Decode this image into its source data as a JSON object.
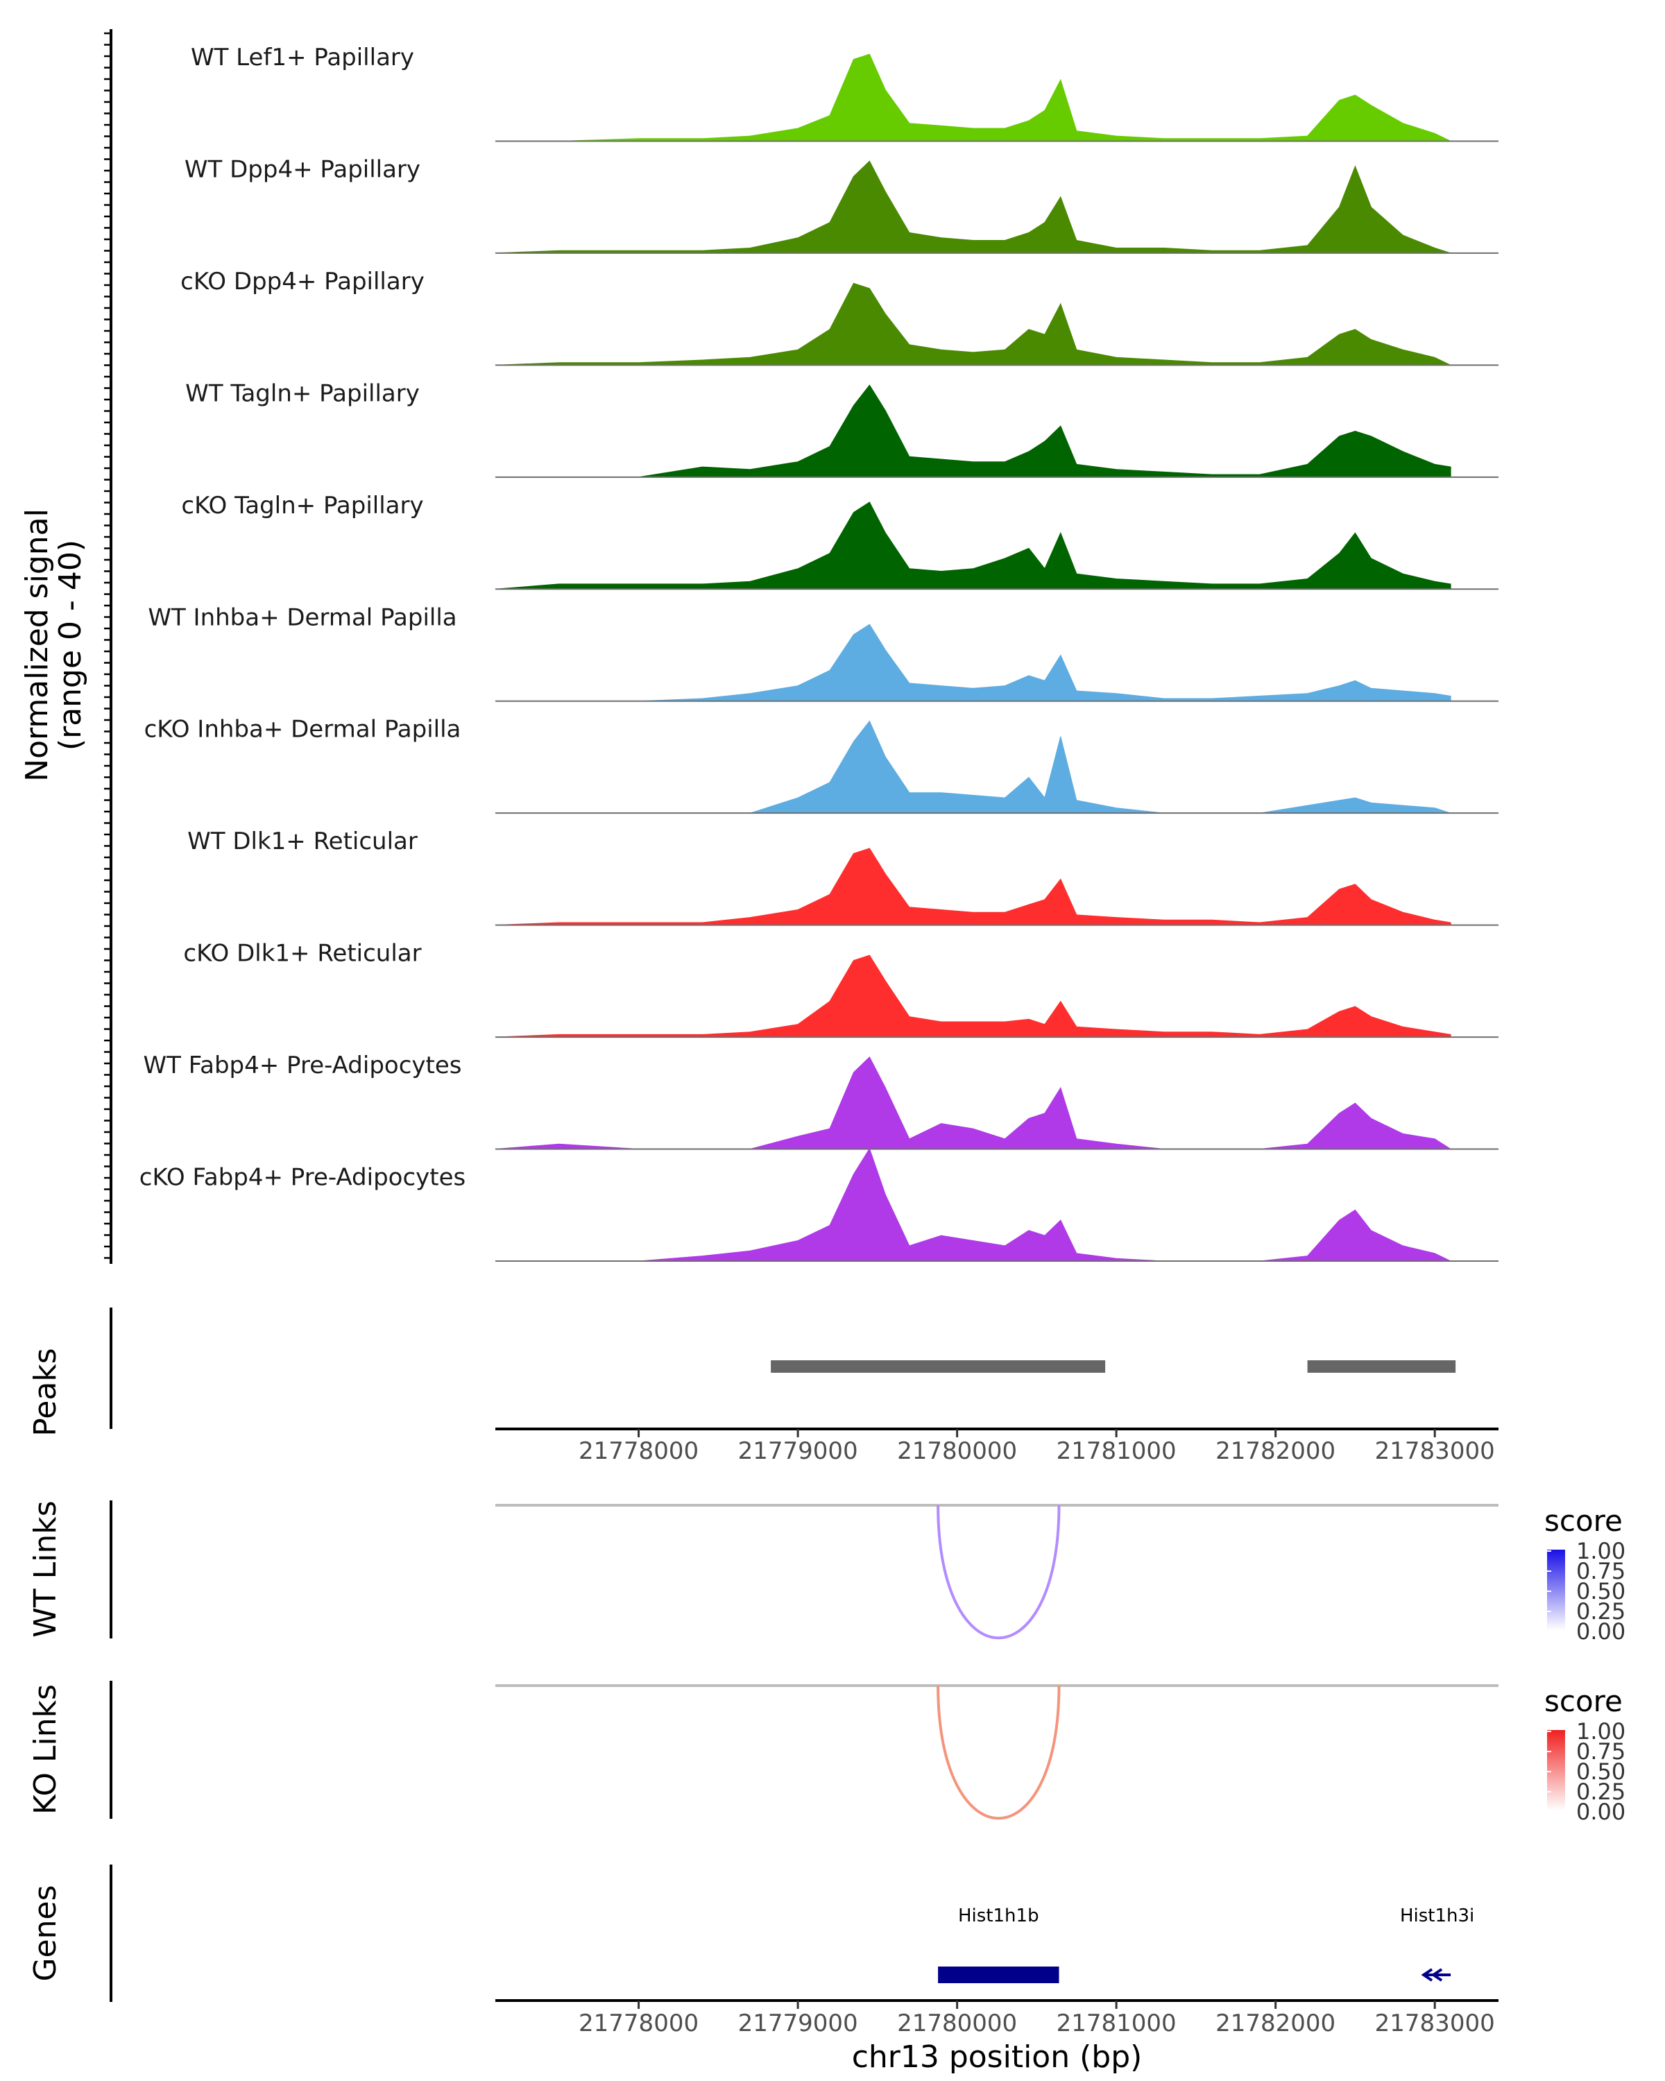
{
  "chart_data": {
    "type": "area",
    "title": "",
    "xlabel": "chr13 position (bp)",
    "xlim": [
      21777100,
      21783400
    ],
    "xticks": [
      21778000,
      21779000,
      21780000,
      21781000,
      21782000,
      21783000
    ],
    "xtick_labels": [
      "21778000",
      "21779000",
      "21780000",
      "21781000",
      "21782000",
      "21783000"
    ],
    "coverage": {
      "ylabel_line1": "Normalized signal",
      "ylabel_line2": "(range 0 - 40)",
      "ylim": [
        0,
        40
      ],
      "x": [
        21777100,
        21777500,
        21778000,
        21778400,
        21778700,
        21779000,
        21779200,
        21779350,
        21779450,
        21779550,
        21779700,
        21779900,
        21780100,
        21780300,
        21780450,
        21780550,
        21780650,
        21780750,
        21781000,
        21781300,
        21781600,
        21781900,
        21782200,
        21782400,
        21782500,
        21782600,
        21782800,
        21783000,
        21783100
      ],
      "series": [
        {
          "name": "WT Lef1+ Papillary",
          "color": "#66cc00",
          "values": [
            0,
            0,
            1,
            1,
            2,
            5,
            10,
            32,
            34,
            20,
            7,
            6,
            5,
            5,
            8,
            12,
            24,
            4,
            2,
            1,
            1,
            1,
            2,
            16,
            18,
            14,
            7,
            3,
            0
          ]
        },
        {
          "name": "WT Dpp4+ Papillary",
          "color": "#4a8a00",
          "values": [
            0,
            1,
            1,
            1,
            2,
            6,
            12,
            30,
            36,
            24,
            8,
            6,
            5,
            5,
            8,
            12,
            22,
            5,
            2,
            2,
            1,
            1,
            3,
            18,
            34,
            18,
            7,
            2,
            0
          ]
        },
        {
          "name": "cKO Dpp4+ Papillary",
          "color": "#4a8a00",
          "values": [
            0,
            1,
            1,
            2,
            3,
            6,
            14,
            32,
            30,
            20,
            8,
            6,
            5,
            6,
            14,
            12,
            24,
            6,
            3,
            2,
            1,
            1,
            3,
            12,
            14,
            10,
            6,
            3,
            0
          ]
        },
        {
          "name": "WT Tagln+ Papillary",
          "color": "#006400",
          "values": [
            0,
            0,
            0,
            4,
            3,
            6,
            12,
            28,
            36,
            26,
            8,
            7,
            6,
            6,
            10,
            14,
            20,
            5,
            3,
            2,
            1,
            1,
            5,
            16,
            18,
            16,
            10,
            5,
            4
          ]
        },
        {
          "name": "cKO Tagln+ Papillary",
          "color": "#006400",
          "values": [
            0,
            2,
            2,
            2,
            3,
            8,
            14,
            30,
            34,
            22,
            8,
            7,
            8,
            12,
            16,
            8,
            22,
            6,
            4,
            3,
            2,
            2,
            4,
            14,
            22,
            12,
            6,
            3,
            2
          ]
        },
        {
          "name": "WT Inhba+ Dermal Papilla",
          "color": "#5dade2",
          "values": [
            0,
            0,
            0,
            1,
            3,
            6,
            12,
            26,
            30,
            20,
            7,
            6,
            5,
            6,
            10,
            8,
            18,
            4,
            3,
            1,
            1,
            2,
            3,
            6,
            8,
            5,
            4,
            3,
            2
          ]
        },
        {
          "name": "cKO Inhba+ Dermal Papilla",
          "color": "#5dade2",
          "values": [
            0,
            0,
            0,
            0,
            0,
            6,
            12,
            28,
            36,
            22,
            8,
            8,
            7,
            6,
            14,
            6,
            30,
            5,
            2,
            0,
            0,
            0,
            3,
            5,
            6,
            4,
            3,
            2,
            0
          ]
        },
        {
          "name": "WT Dlk1+ Reticular",
          "color": "#ff2e2e",
          "values": [
            0,
            1,
            1,
            1,
            3,
            6,
            12,
            28,
            30,
            20,
            7,
            6,
            5,
            5,
            8,
            10,
            18,
            4,
            3,
            2,
            2,
            1,
            3,
            14,
            16,
            10,
            5,
            2,
            1
          ]
        },
        {
          "name": "cKO Dlk1+ Reticular",
          "color": "#ff2e2e",
          "values": [
            0,
            1,
            1,
            1,
            2,
            5,
            14,
            30,
            32,
            22,
            8,
            6,
            6,
            6,
            7,
            5,
            14,
            4,
            3,
            2,
            2,
            1,
            3,
            10,
            12,
            8,
            4,
            2,
            1
          ]
        },
        {
          "name": "WT Fabp4+ Pre-Adipocytes",
          "color": "#b03ae8",
          "values": [
            0,
            2,
            0,
            0,
            0,
            5,
            8,
            30,
            36,
            24,
            4,
            10,
            8,
            4,
            12,
            14,
            24,
            4,
            2,
            0,
            0,
            0,
            2,
            14,
            18,
            12,
            6,
            4,
            0
          ]
        },
        {
          "name": "cKO Fabp4+ Pre-Adipocytes",
          "color": "#b03ae8",
          "values": [
            0,
            0,
            0,
            2,
            4,
            8,
            14,
            34,
            44,
            26,
            6,
            10,
            8,
            6,
            12,
            10,
            16,
            3,
            1,
            0,
            0,
            0,
            2,
            16,
            20,
            12,
            6,
            3,
            0
          ]
        }
      ]
    },
    "peaks": {
      "label": "Peaks",
      "ranges": [
        [
          21778830,
          21780930
        ],
        [
          21782200,
          21783130
        ]
      ]
    },
    "links": [
      {
        "label": "WT Links",
        "start": 21779880,
        "end": 21780640,
        "score": 0.5,
        "color": "#b28cff",
        "legend": {
          "title": "score",
          "labels": [
            "1.00",
            "0.75",
            "0.50",
            "0.25",
            "0.00"
          ],
          "low": "#ffffff",
          "high": "#1a10e6"
        }
      },
      {
        "label": "KO Links",
        "start": 21779880,
        "end": 21780640,
        "score": 0.5,
        "color": "#f3957c",
        "legend": {
          "title": "score",
          "labels": [
            "1.00",
            "0.75",
            "0.50",
            "0.25",
            "0.00"
          ],
          "low": "#ffffff",
          "high": "#f02020"
        }
      }
    ],
    "genes": {
      "label": "Genes",
      "color": "#00008b",
      "items": [
        {
          "name": "Hist1h1b",
          "start": 21779880,
          "end": 21780640,
          "strand": "+"
        },
        {
          "name": "Hist1h3i",
          "start": 21782930,
          "end": 21783100,
          "strand": "-"
        }
      ]
    }
  }
}
